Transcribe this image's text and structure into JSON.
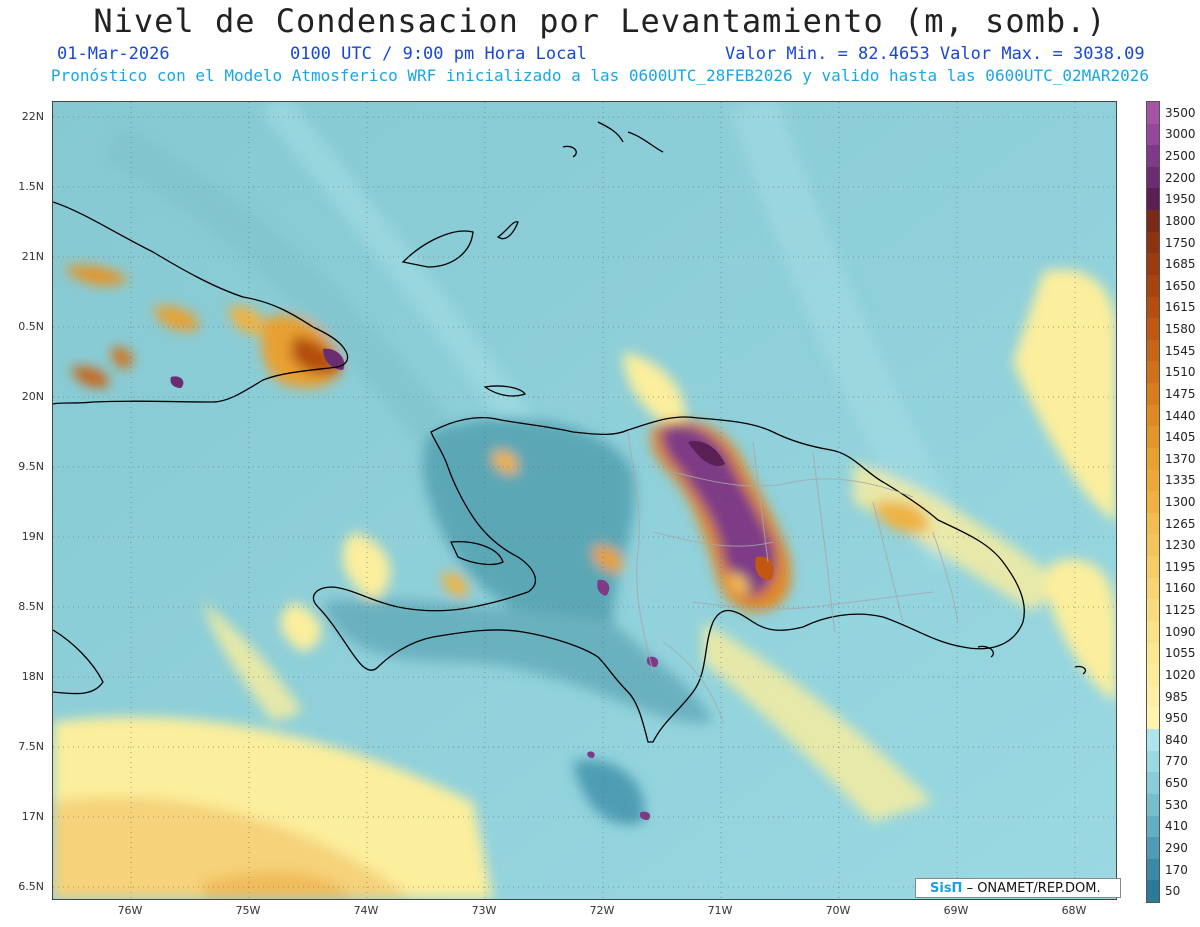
{
  "header": {
    "title": "Nivel de Condensacion por Levantamiento (m, somb.)",
    "date": "01-Mar-2026",
    "time": "0100 UTC / 9:00 pm Hora Local",
    "minmax": "Valor Min. = 82.4653   Valor Max. = 3038.09",
    "subtitle": "Pronóstico con el Modelo Atmosferico WRF inicializado a las 0600UTC_28FEB2026 y valido hasta las  0600UTC_02MAR2026"
  },
  "axes": {
    "lat_labels": [
      "22N",
      "1.5N",
      "21N",
      "0.5N",
      "20N",
      "9.5N",
      "19N",
      "8.5N",
      "18N",
      "7.5N",
      "17N",
      "6.5N"
    ],
    "lon_labels": [
      "76W",
      "75W",
      "74W",
      "73W",
      "72W",
      "71W",
      "70W",
      "69W",
      "68W"
    ]
  },
  "legend": {
    "levels": [
      "3500",
      "3000",
      "2500",
      "2200",
      "1950",
      "1800",
      "1750",
      "1685",
      "1650",
      "1615",
      "1580",
      "1545",
      "1510",
      "1475",
      "1440",
      "1405",
      "1370",
      "1335",
      "1300",
      "1265",
      "1230",
      "1195",
      "1160",
      "1125",
      "1090",
      "1055",
      "1020",
      "985",
      "950",
      "840",
      "770",
      "650",
      "530",
      "410",
      "290",
      "170",
      "50"
    ],
    "colors": [
      "#a653a6",
      "#95479a",
      "#7e3a86",
      "#6a2d72",
      "#5a1f55",
      "#7a2a1a",
      "#8c3412",
      "#9a3c10",
      "#a8440f",
      "#b44e10",
      "#c05812",
      "#c86414",
      "#d07018",
      "#d87c1c",
      "#e08822",
      "#e49428",
      "#e8a030",
      "#eca838",
      "#efb242",
      "#f2bc4e",
      "#f4c45a",
      "#f6cc66",
      "#f8d472",
      "#f9dc7e",
      "#fae288",
      "#fbe892",
      "#fcec9c",
      "#fdf0a6",
      "#fef4b0",
      "#aee4ec",
      "#9ad8e2",
      "#88ccd8",
      "#76bece",
      "#62aec2",
      "#4e9cb4",
      "#3a8aa6",
      "#2a7a98"
    ]
  },
  "credit": {
    "brand": "SisΠ",
    "text": " – ONAMET/REP.DOM."
  },
  "map": {
    "sea_color": "#8fd0da",
    "high_color": "#7a2e6e",
    "low_color": "#fbee9c",
    "coast_color": "#000000",
    "border_color": "#999999"
  }
}
